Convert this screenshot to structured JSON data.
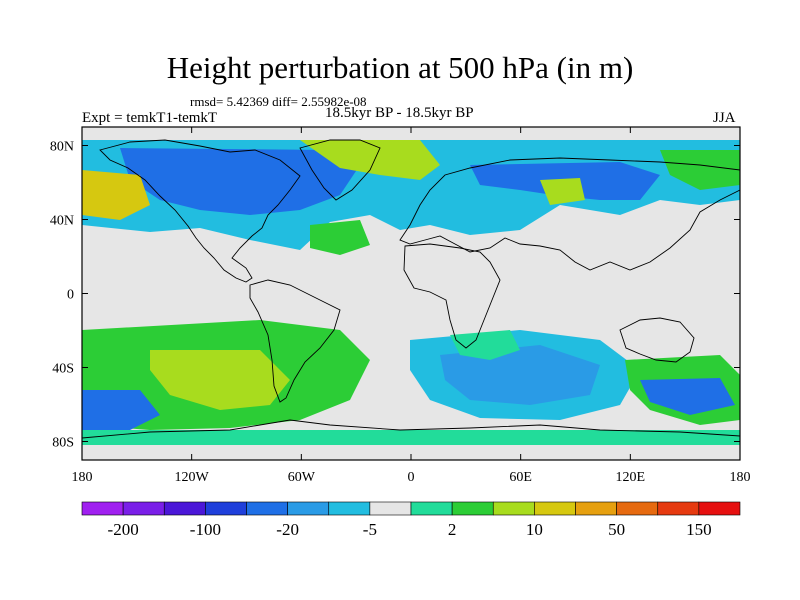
{
  "title": "Height perturbation at 500 hPa (in m)",
  "stats": "rmsd= 5.42369 diff= 2.55982e-08",
  "experiment": "Expt = temkT1-temkT",
  "period": "18.5kyr BP - 18.5kyr BP",
  "season": "JJA",
  "map": {
    "lat_ticks": [
      {
        "label": "80N",
        "lat": 80
      },
      {
        "label": "40N",
        "lat": 40
      },
      {
        "label": "0",
        "lat": 0
      },
      {
        "label": "40S",
        "lat": -40
      },
      {
        "label": "80S",
        "lat": -80
      }
    ],
    "lon_ticks": [
      {
        "label": "180",
        "lon": -180
      },
      {
        "label": "120W",
        "lon": -120
      },
      {
        "label": "60W",
        "lon": -60
      },
      {
        "label": "0",
        "lon": 0
      },
      {
        "label": "60E",
        "lon": 60
      },
      {
        "label": "120E",
        "lon": 120
      },
      {
        "label": "180",
        "lon": 180
      }
    ]
  },
  "colorbar": {
    "colors": [
      "#a020f0",
      "#7a1fe8",
      "#4b17d8",
      "#1f3fdb",
      "#1f6fe6",
      "#2a9be6",
      "#22bde0",
      "#e6e6e6",
      "#22dc9a",
      "#2ccd36",
      "#a8dc1e",
      "#d6c810",
      "#e6a010",
      "#e66a10",
      "#e63a10",
      "#e61010"
    ],
    "labels": [
      "-200",
      "-100",
      "-20",
      "-5",
      "2",
      "10",
      "50",
      "150"
    ]
  },
  "palette": {
    "neutral": "#e6e6e6",
    "lightblue": "#22bde0",
    "midblue": "#2a9be6",
    "blue": "#1f6fe6",
    "teal": "#22dc9a",
    "green": "#2ccd36",
    "lime": "#a8dc1e",
    "yellow": "#d6c810"
  }
}
